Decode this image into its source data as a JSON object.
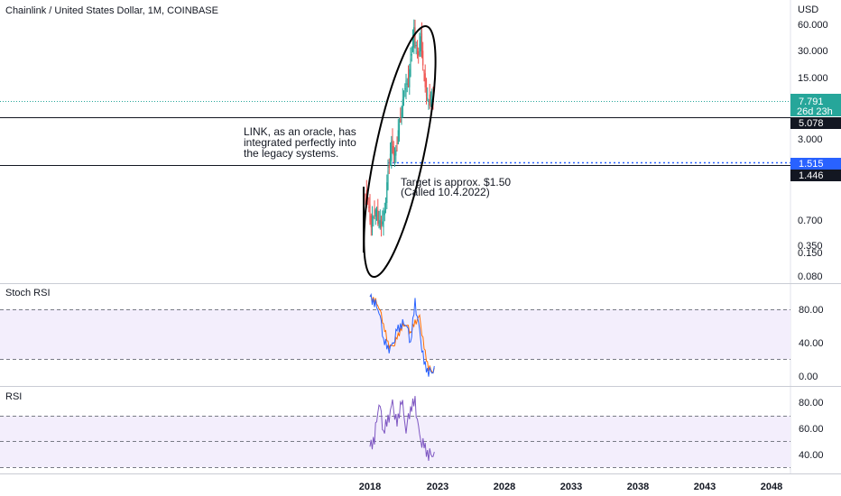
{
  "header": {
    "title": "Chainlink / United States Dollar, 1M, COINBASE"
  },
  "price_axis": {
    "currency": "USD",
    "ticks": [
      "60.000",
      "30.000",
      "15.000",
      "3.000",
      "0.700",
      "0.350",
      "0.150",
      "0.080"
    ]
  },
  "tags": {
    "last_price": "7.791",
    "countdown": "26d 23h",
    "line_upper": "5.078",
    "line_blue": "1.515",
    "line_lower": "1.446"
  },
  "annotations": {
    "oracle_note": [
      "LINK, as an oracle, has",
      "integrated perfectly into",
      "the legacy systems."
    ],
    "target_note": [
      "Target is approx. $1.50",
      "(Called 10.4.2022)"
    ]
  },
  "stoch_pane": {
    "title": "Stoch RSI",
    "ticks": [
      "80.00",
      "40.00",
      "0.00"
    ]
  },
  "rsi_pane": {
    "title": "RSI",
    "ticks": [
      "80.00",
      "60.00",
      "40.00"
    ]
  },
  "x_axis": {
    "ticks": [
      "2018",
      "2023",
      "2028",
      "2033",
      "2038",
      "2043",
      "2048"
    ]
  },
  "colors": {
    "up": "#26a69a",
    "down": "#ef5350",
    "blue": "#2962ff",
    "stoch_k": "#2962ff",
    "stoch_d": "#ff6d00",
    "rsi": "#7e57c2",
    "band_fill": "#f3eefc"
  },
  "chart_data": {
    "type": "line",
    "log_scale": true,
    "series": [
      {
        "x": [
          "2017-09",
          "2017-12",
          "2018-03",
          "2018-06",
          "2018-09",
          "2018-12",
          "2019-03",
          "2019-06",
          "2019-09",
          "2019-12",
          "2020-03",
          "2020-06",
          "2020-09",
          "2020-12",
          "2021-03",
          "2021-05",
          "2021-08",
          "2021-11",
          "2022-02",
          "2022-05",
          "2022-08",
          "2022-10"
        ],
        "values": [
          0.7,
          0.55,
          0.3,
          0.45,
          0.35,
          0.3,
          0.45,
          1.2,
          2.5,
          1.8,
          3.5,
          6.0,
          12.0,
          13.0,
          30.0,
          50.0,
          25.0,
          40.0,
          15.0,
          8.0,
          7.8,
          7.79
        ]
      },
      {
        "name": "Stoch RSI",
        "x": [
          "2018-01",
          "2018-05",
          "2018-09",
          "2019-01",
          "2019-05",
          "2019-09",
          "2020-01",
          "2020-05",
          "2020-09",
          "2021-01",
          "2021-05",
          "2021-09",
          "2022-01",
          "2022-05",
          "2022-09",
          "2022-10"
        ],
        "values": [
          95,
          88,
          80,
          45,
          32,
          35,
          55,
          62,
          65,
          40,
          88,
          52,
          15,
          5,
          8,
          12
        ]
      },
      {
        "name": "RSI",
        "x": [
          "2018-01",
          "2018-05",
          "2018-09",
          "2019-01",
          "2019-05",
          "2019-09",
          "2020-01",
          "2020-05",
          "2020-09",
          "2021-01",
          "2021-05",
          "2021-09",
          "2022-01",
          "2022-05",
          "2022-09",
          "2022-10"
        ],
        "values": [
          46,
          52,
          82,
          58,
          66,
          78,
          62,
          83,
          60,
          76,
          80,
          52,
          46,
          40,
          42,
          42
        ]
      }
    ],
    "horizontal_lines": [
      5.078,
      1.515,
      1.446
    ],
    "stoch_bands": [
      80,
      20
    ],
    "rsi_bands": [
      70,
      50,
      30
    ]
  }
}
